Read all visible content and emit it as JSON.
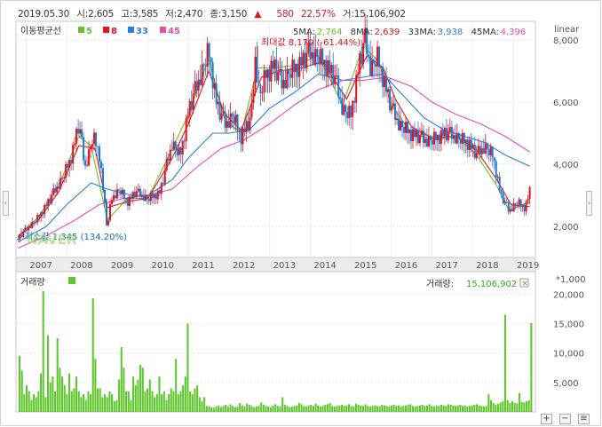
{
  "summary": {
    "date": "2019.05.30",
    "open_label": "시:",
    "open": "2,605",
    "high_label": "고:",
    "high": "3,585",
    "low_label": "저:",
    "low": "2,470",
    "close_label": "종:",
    "close": "3,150",
    "change_arrow": "▲",
    "change": "580",
    "change_pct": "22.57%",
    "volume_label": "거:",
    "volume": "15,106,902"
  },
  "legend": {
    "title": "이동평균선",
    "items": [
      {
        "label": "5",
        "color": "#6bbf2a"
      },
      {
        "label": "8",
        "color": "#e0141e"
      },
      {
        "label": "33",
        "color": "#2a7fd8"
      },
      {
        "label": "45",
        "color": "#e84ca8"
      }
    ],
    "ma_values": [
      {
        "label": "5MA:",
        "value": "2,764"
      },
      {
        "label": "8MA:",
        "value": "2,639"
      },
      {
        "label": "33MA:",
        "value": "3,938"
      },
      {
        "label": "45MA:",
        "value": "4,396"
      }
    ]
  },
  "scale_label": "linear",
  "annotations": {
    "max": "최대값 8,170 (-61.44%)",
    "min": "최소값 1,345 (134.20%)",
    "watermark": "NAVER"
  },
  "volume_panel": {
    "title": "거래량",
    "legend_value": "15,106,902",
    "legend_label": "거래량:",
    "close_icon": "×",
    "unit": "*1,000"
  },
  "colors": {
    "up": "#e0141e",
    "down": "#1a7bd0",
    "ma5": "#6bbf2a",
    "ma8": "#e0141e",
    "ma33": "#2a7fd8",
    "ma45": "#e84ca8",
    "volume": "#5fc62d"
  },
  "chart_data": [
    {
      "type": "candlestick",
      "x_ticks": [
        "2007",
        "2008",
        "2009",
        "2010",
        "2011",
        "2012",
        "2013",
        "2014",
        "2015",
        "2016",
        "2017",
        "2018",
        "2019"
      ],
      "x_range": [
        2006.75,
        2019.55
      ],
      "ylim": [
        1000,
        8600
      ],
      "y_ticks": [
        2000,
        4000,
        6000,
        8000
      ],
      "y_tick_labels": [
        "2,000",
        "4,000",
        "6,000",
        "8,000"
      ],
      "price": [
        [
          2006.8,
          1600
        ],
        [
          2007.0,
          1900
        ],
        [
          2007.3,
          2300
        ],
        [
          2007.6,
          2900
        ],
        [
          2007.9,
          3600
        ],
        [
          2008.1,
          4200
        ],
        [
          2008.3,
          5300
        ],
        [
          2008.45,
          3900
        ],
        [
          2008.65,
          4900
        ],
        [
          2008.8,
          4400
        ],
        [
          2009.0,
          1900
        ],
        [
          2009.1,
          2900
        ],
        [
          2009.3,
          3200
        ],
        [
          2009.5,
          2800
        ],
        [
          2009.7,
          3100
        ],
        [
          2010.0,
          2900
        ],
        [
          2010.3,
          3100
        ],
        [
          2010.6,
          4700
        ],
        [
          2010.8,
          4300
        ],
        [
          2011.0,
          5700
        ],
        [
          2011.2,
          6500
        ],
        [
          2011.35,
          7100
        ],
        [
          2011.5,
          7700
        ],
        [
          2011.7,
          5900
        ],
        [
          2011.9,
          5300
        ],
        [
          2012.1,
          5600
        ],
        [
          2012.3,
          4900
        ],
        [
          2012.55,
          5500
        ],
        [
          2012.65,
          7500
        ],
        [
          2012.75,
          6200
        ],
        [
          2012.9,
          6900
        ],
        [
          2013.1,
          7200
        ],
        [
          2013.3,
          6600
        ],
        [
          2013.5,
          7000
        ],
        [
          2013.8,
          7300
        ],
        [
          2014.0,
          7600
        ],
        [
          2014.2,
          7500
        ],
        [
          2014.4,
          7200
        ],
        [
          2014.6,
          6800
        ],
        [
          2014.8,
          5800
        ],
        [
          2015.0,
          5600
        ],
        [
          2015.2,
          7200
        ],
        [
          2015.35,
          8000
        ],
        [
          2015.5,
          7100
        ],
        [
          2015.65,
          7500
        ],
        [
          2015.8,
          6800
        ],
        [
          2016.0,
          5800
        ],
        [
          2016.2,
          5300
        ],
        [
          2016.5,
          5000
        ],
        [
          2016.8,
          4800
        ],
        [
          2017.0,
          4800
        ],
        [
          2017.3,
          5000
        ],
        [
          2017.6,
          4900
        ],
        [
          2017.9,
          4700
        ],
        [
          2018.1,
          4300
        ],
        [
          2018.3,
          4600
        ],
        [
          2018.5,
          4300
        ],
        [
          2018.7,
          3000
        ],
        [
          2018.9,
          2500
        ],
        [
          2019.1,
          2800
        ],
        [
          2019.3,
          2600
        ],
        [
          2019.41,
          3150
        ]
      ],
      "ma_series": [
        {
          "name": "5",
          "color": "#6bbf2a",
          "points": [
            [
              2006.8,
              1650
            ],
            [
              2007.3,
              2300
            ],
            [
              2007.8,
              3300
            ],
            [
              2008.3,
              4900
            ],
            [
              2008.6,
              4600
            ],
            [
              2009.0,
              2200
            ],
            [
              2009.5,
              2900
            ],
            [
              2010.0,
              2900
            ],
            [
              2010.6,
              4500
            ],
            [
              2011.0,
              5600
            ],
            [
              2011.5,
              7400
            ],
            [
              2011.9,
              5400
            ],
            [
              2012.3,
              5000
            ],
            [
              2012.7,
              7100
            ],
            [
              2013.1,
              7100
            ],
            [
              2013.7,
              7200
            ],
            [
              2014.2,
              7500
            ],
            [
              2014.8,
              5900
            ],
            [
              2015.3,
              7800
            ],
            [
              2015.7,
              7300
            ],
            [
              2016.0,
              5900
            ],
            [
              2016.5,
              5000
            ],
            [
              2017.0,
              4800
            ],
            [
              2017.6,
              4900
            ],
            [
              2018.1,
              4300
            ],
            [
              2018.6,
              3300
            ],
            [
              2018.9,
              2500
            ],
            [
              2019.2,
              2700
            ],
            [
              2019.41,
              2764
            ]
          ]
        },
        {
          "name": "8",
          "color": "#e0141e",
          "points": [
            [
              2006.8,
              1700
            ],
            [
              2007.3,
              2200
            ],
            [
              2007.8,
              3100
            ],
            [
              2008.3,
              4600
            ],
            [
              2008.7,
              4500
            ],
            [
              2009.0,
              2600
            ],
            [
              2009.5,
              2800
            ],
            [
              2010.0,
              2900
            ],
            [
              2010.6,
              4200
            ],
            [
              2011.0,
              5300
            ],
            [
              2011.5,
              7000
            ],
            [
              2011.9,
              5600
            ],
            [
              2012.3,
              5100
            ],
            [
              2012.8,
              6800
            ],
            [
              2013.2,
              7000
            ],
            [
              2013.8,
              7100
            ],
            [
              2014.3,
              7300
            ],
            [
              2014.9,
              6100
            ],
            [
              2015.4,
              7500
            ],
            [
              2015.8,
              7100
            ],
            [
              2016.1,
              6100
            ],
            [
              2016.5,
              5200
            ],
            [
              2017.0,
              4850
            ],
            [
              2017.6,
              4900
            ],
            [
              2018.1,
              4450
            ],
            [
              2018.6,
              3500
            ],
            [
              2018.95,
              2700
            ],
            [
              2019.2,
              2650
            ],
            [
              2019.41,
              2639
            ]
          ]
        },
        {
          "name": "33",
          "color": "#2a7fd8",
          "points": [
            [
              2006.8,
              1500
            ],
            [
              2007.5,
              2000
            ],
            [
              2008.0,
              2700
            ],
            [
              2008.6,
              3400
            ],
            [
              2009.0,
              3200
            ],
            [
              2009.6,
              3000
            ],
            [
              2010.0,
              3000
            ],
            [
              2010.6,
              3500
            ],
            [
              2011.0,
              4200
            ],
            [
              2011.6,
              5000
            ],
            [
              2012.0,
              5000
            ],
            [
              2012.5,
              5100
            ],
            [
              2013.0,
              5800
            ],
            [
              2013.6,
              6300
            ],
            [
              2014.2,
              6900
            ],
            [
              2014.8,
              6700
            ],
            [
              2015.3,
              6800
            ],
            [
              2015.8,
              6900
            ],
            [
              2016.3,
              6200
            ],
            [
              2016.8,
              5500
            ],
            [
              2017.3,
              5100
            ],
            [
              2017.8,
              4900
            ],
            [
              2018.3,
              4700
            ],
            [
              2018.8,
              4300
            ],
            [
              2019.41,
              3938
            ]
          ]
        },
        {
          "name": "45",
          "color": "#e84ca8",
          "points": [
            [
              2006.8,
              1300
            ],
            [
              2007.5,
              1700
            ],
            [
              2008.2,
              2200
            ],
            [
              2008.8,
              2700
            ],
            [
              2009.4,
              2900
            ],
            [
              2010.0,
              3000
            ],
            [
              2010.6,
              3200
            ],
            [
              2011.2,
              3900
            ],
            [
              2011.8,
              4500
            ],
            [
              2012.4,
              4800
            ],
            [
              2013.0,
              5300
            ],
            [
              2013.6,
              5900
            ],
            [
              2014.2,
              6400
            ],
            [
              2014.8,
              6700
            ],
            [
              2015.3,
              6700
            ],
            [
              2015.9,
              6800
            ],
            [
              2016.5,
              6500
            ],
            [
              2017.0,
              6000
            ],
            [
              2017.6,
              5600
            ],
            [
              2018.2,
              5300
            ],
            [
              2018.8,
              4900
            ],
            [
              2019.41,
              4396
            ]
          ]
        }
      ]
    },
    {
      "type": "bar",
      "series_name": "거래량",
      "unit": "*1,000",
      "ylim": [
        0,
        22000
      ],
      "y_ticks": [
        5000,
        10000,
        15000,
        20000
      ],
      "y_tick_labels": [
        "5,000",
        "10,000",
        "15,000",
        "20,000"
      ],
      "values": [
        9500,
        7000,
        3000,
        4500,
        3500,
        2000,
        3000,
        2500,
        3500,
        6500,
        20500,
        2500,
        13000,
        5000,
        6000,
        3500,
        12500,
        7500,
        6000,
        4500,
        3000,
        6500,
        3500,
        4000,
        6000,
        3500,
        2500,
        3000,
        2000,
        3500,
        3000,
        19300,
        9000,
        4000,
        4000,
        2500,
        3000,
        2500,
        3500,
        3000,
        1800,
        2000,
        5500,
        11000,
        7500,
        3500,
        3500,
        2000,
        6000,
        4500,
        5500,
        8000,
        7500,
        3500,
        4000,
        5500,
        3500,
        2500,
        3000,
        6000,
        3000,
        3500,
        2000,
        3000,
        4000,
        3500,
        9000,
        3000,
        3500,
        4500,
        6000,
        15000,
        3500,
        3000,
        4000,
        4500,
        2500,
        1800,
        2500,
        1000,
        900,
        800,
        700,
        900,
        1100,
        800,
        1000,
        1200,
        900,
        1300,
        1000,
        800,
        900,
        1500,
        1100,
        900,
        1400,
        1200,
        1000,
        800,
        900,
        1000,
        1600,
        1200,
        1000,
        900,
        800,
        1100,
        1300,
        1000,
        900,
        2500,
        1200,
        1000,
        800,
        900,
        1000,
        1100,
        1500,
        1300,
        1000,
        900,
        1100,
        1200,
        1000,
        1400,
        1100,
        900,
        1000,
        1200,
        1300,
        1500,
        1000,
        900,
        1000,
        1100,
        1200,
        1000,
        1100,
        1300,
        1000,
        900,
        1400,
        1200,
        1100,
        1000,
        1300,
        1000,
        900,
        1000,
        1100,
        1000,
        900,
        1200,
        1100,
        1000,
        900,
        1100,
        1200,
        1000,
        1100,
        900,
        1000,
        1100,
        1200,
        1300,
        1000,
        900,
        1000,
        1100,
        1200,
        1000,
        1100,
        1300,
        1000,
        900,
        1100,
        1000,
        1200,
        1100,
        1000,
        1300,
        1200,
        1100,
        1000,
        1100,
        1200,
        1000,
        1100,
        900,
        1000,
        1100,
        1200,
        1300,
        1100,
        1000,
        900,
        1000,
        3000,
        2000,
        1500,
        1200,
        1400,
        1600,
        1800,
        16500,
        2000,
        1500,
        1800,
        1500,
        1400,
        3200,
        1700,
        1600,
        1800,
        2000,
        15106
      ]
    }
  ]
}
